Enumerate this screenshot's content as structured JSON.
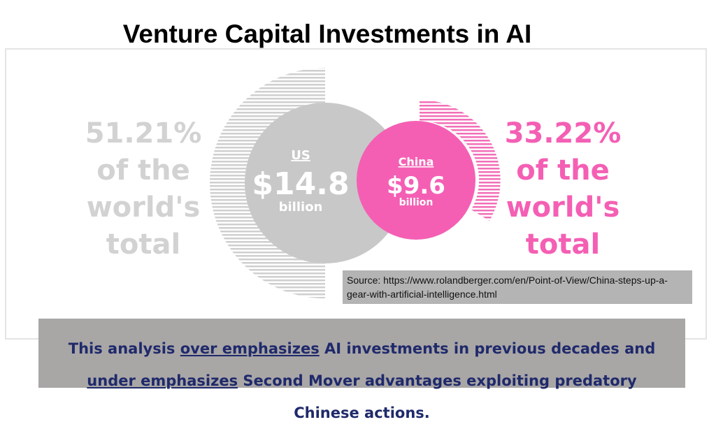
{
  "title": "Venture Capital Investments in AI",
  "infographic": {
    "left_text": [
      "51.21%",
      "of the",
      "world's",
      "total"
    ],
    "us": {
      "label": "US",
      "amount": "$14.8",
      "unit": "billion"
    },
    "china": {
      "label": "China",
      "amount": "$9.6",
      "unit": "billion"
    },
    "right_text": [
      "33.22%",
      "of the",
      "world's",
      "total"
    ]
  },
  "source": "Source: https://www.rolandberger.com/en/Point-of-View/China-steps-up-a-gear-with-artificial-intelligence.html",
  "banner": {
    "segments": [
      "This analysis",
      "over emphasizes",
      "AI investments in previous decades and",
      "under emphasizes",
      "Second Mover advantages exploiting predatory Chinese actions."
    ]
  }
}
